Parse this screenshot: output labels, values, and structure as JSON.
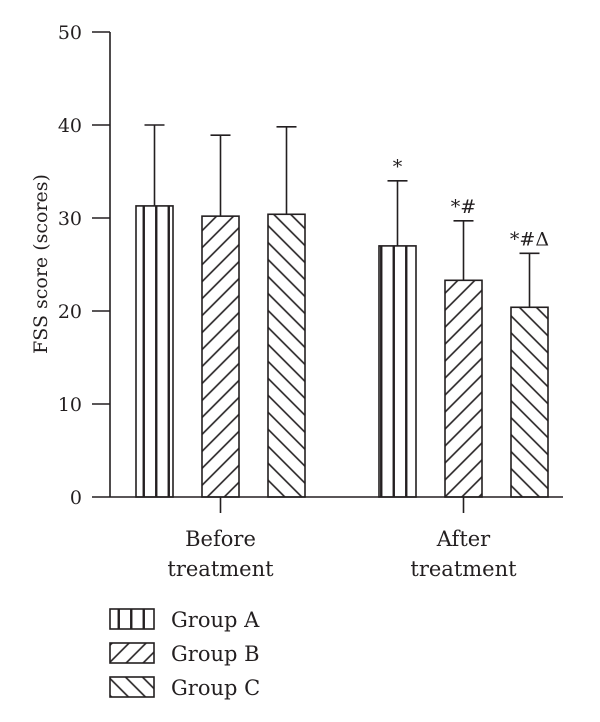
{
  "chart_data": {
    "type": "bar",
    "categories": [
      [
        "Before",
        "treatment"
      ],
      [
        "After",
        "treatment"
      ]
    ],
    "series": [
      {
        "name": "Group A",
        "pattern": "vertical",
        "values": [
          31.3,
          27.0
        ],
        "errors": [
          40.0,
          34.0
        ],
        "annotations": [
          "",
          "*"
        ]
      },
      {
        "name": "Group B",
        "pattern": "diagonal-up",
        "values": [
          30.2,
          23.3
        ],
        "errors": [
          38.9,
          29.7
        ],
        "annotations": [
          "",
          "*#"
        ]
      },
      {
        "name": "Group C",
        "pattern": "diagonal-down",
        "values": [
          30.4,
          20.4
        ],
        "errors": [
          39.8,
          26.2
        ],
        "annotations": [
          "",
          "*#Δ"
        ]
      }
    ],
    "ylabel": "FSS score (scores)",
    "ylim": [
      0,
      50
    ],
    "yticks": [
      0,
      10,
      20,
      30,
      40,
      50
    ],
    "grid": false,
    "legend_position": "bottom-left",
    "colors": {
      "ink": "#231f20",
      "fill": "#ffffff"
    }
  }
}
